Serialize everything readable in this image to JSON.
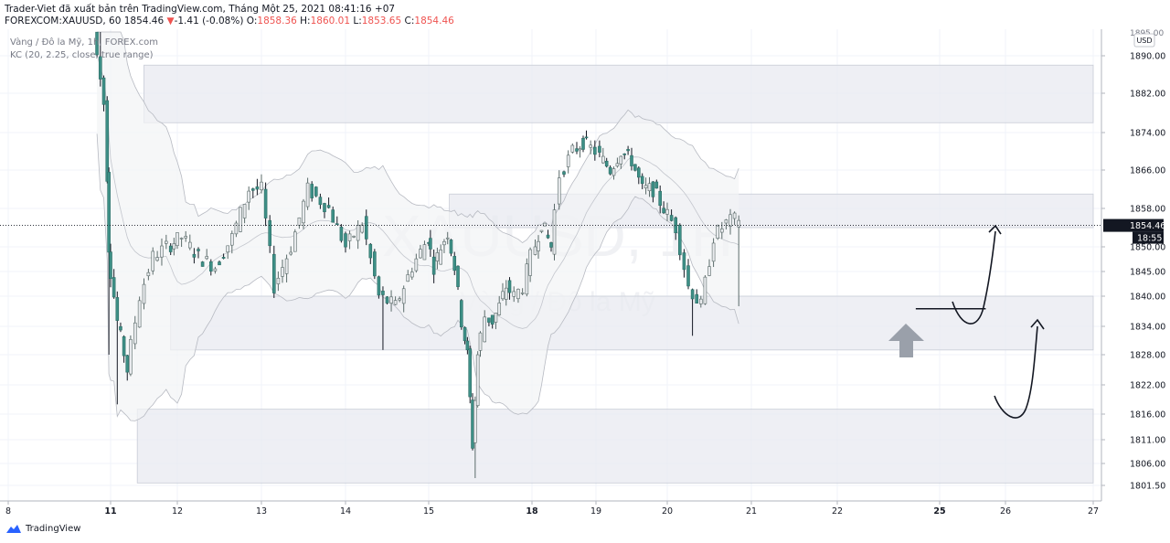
{
  "header": {
    "line1": "Trader-Viet đã xuất bản trên TradingView.com, Tháng Một 25, 2021 08:41:16 +07",
    "symbol": "FOREXCOM:XAUUSD, 60",
    "last": "1854.46",
    "change_arrow": "▼",
    "change": "-1.41 (-0.08%)",
    "o_label": "O:",
    "o_val": "1858.36",
    "h_label": "H:",
    "h_val": "1860.01",
    "l_label": "L:",
    "l_val": "1853.65",
    "c_label": "C:",
    "c_val": "1854.46"
  },
  "legend": {
    "line1": "Vàng / Đô la Mỹ, 1h, FOREX.com",
    "line2": "KC (20, 2.25, close, true range)"
  },
  "watermark": {
    "big": "XAUUSD, 1H",
    "small": "Vàng / Đô la Mỹ"
  },
  "footer": {
    "brand": "TradingView"
  },
  "colors": {
    "up": "#26a69a",
    "down": "#131722",
    "up_body": "#e8eaed",
    "down_body": "#3d8f86",
    "zone": "#e8eaf0",
    "price_tag": "#131722"
  },
  "chart_data": {
    "type": "candlestick",
    "symbol": "XAUUSD",
    "interval": "1h",
    "currency": "USD",
    "y_ticks": [
      1890.0,
      1882.0,
      1874.0,
      1866.0,
      1858.0,
      1850.0,
      1845.0,
      1840.0,
      1834.0,
      1828.0,
      1822.0,
      1816.0,
      1811.0,
      1806.0,
      1801.5
    ],
    "y_top_label": "1895.00",
    "x_ticks": [
      {
        "label": "8",
        "day": 8
      },
      {
        "label": "11",
        "day": 11
      },
      {
        "label": "12",
        "day": 12
      },
      {
        "label": "13",
        "day": 13
      },
      {
        "label": "14",
        "day": 14
      },
      {
        "label": "15",
        "day": 15
      },
      {
        "label": "18",
        "day": 18
      },
      {
        "label": "19",
        "day": 19
      },
      {
        "label": "20",
        "day": 20
      },
      {
        "label": "21",
        "day": 21
      },
      {
        "label": "22",
        "day": 22
      },
      {
        "label": "25",
        "day": 25
      },
      {
        "label": "26",
        "day": 26
      },
      {
        "label": "27",
        "day": 27
      }
    ],
    "last_price": "1854.46",
    "countdown": "18:55",
    "zones": [
      {
        "from_day": 11.5,
        "to_day": 27,
        "low": 1876,
        "high": 1888
      },
      {
        "from_day": 15.6,
        "to_day": 27,
        "low": 1854,
        "high": 1861
      },
      {
        "from_day": 11.9,
        "to_day": 27,
        "low": 1829,
        "high": 1840
      },
      {
        "from_day": 11.4,
        "to_day": 27,
        "low": 1802,
        "high": 1817
      }
    ],
    "support_line": {
      "from_day": 24.3,
      "to_day": 25.7,
      "price": 1837.5
    },
    "path": [
      [
        10.6,
        1895
      ],
      [
        10.9,
        1880
      ],
      [
        11.0,
        1850
      ],
      [
        11.15,
        1835
      ],
      [
        11.3,
        1825
      ],
      [
        11.5,
        1840
      ],
      [
        11.7,
        1848
      ],
      [
        11.9,
        1850
      ],
      [
        12.1,
        1852
      ],
      [
        12.3,
        1848
      ],
      [
        12.5,
        1846
      ],
      [
        12.7,
        1852
      ],
      [
        12.9,
        1862
      ],
      [
        13.05,
        1862
      ],
      [
        13.2,
        1842
      ],
      [
        13.4,
        1850
      ],
      [
        13.6,
        1862
      ],
      [
        13.85,
        1858
      ],
      [
        14.05,
        1850
      ],
      [
        14.25,
        1855
      ],
      [
        14.45,
        1840
      ],
      [
        14.65,
        1838
      ],
      [
        14.85,
        1846
      ],
      [
        15.05,
        1852
      ],
      [
        15.25,
        1846
      ],
      [
        15.45,
        1850
      ],
      [
        15.65,
        1853
      ],
      [
        15.85,
        1846
      ],
      [
        16.05,
        1835
      ],
      [
        16.2,
        1828
      ],
      [
        16.35,
        1810
      ],
      [
        16.5,
        1828
      ],
      [
        16.75,
        1836
      ],
      [
        16.95,
        1835
      ],
      [
        17.15,
        1838
      ],
      [
        17.35,
        1842
      ],
      [
        17.6,
        1840
      ],
      [
        17.85,
        1842
      ],
      [
        18.05,
        1848
      ],
      [
        18.2,
        1855
      ],
      [
        18.35,
        1850
      ],
      [
        18.5,
        1865
      ],
      [
        18.7,
        1870
      ],
      [
        18.85,
        1872
      ],
      [
        19.05,
        1870
      ],
      [
        19.25,
        1866
      ],
      [
        19.4,
        1870
      ],
      [
        19.55,
        1868
      ],
      [
        19.7,
        1862
      ],
      [
        19.85,
        1862
      ],
      [
        20.0,
        1858
      ],
      [
        20.15,
        1854
      ],
      [
        20.3,
        1842
      ],
      [
        20.45,
        1838
      ],
      [
        20.6,
        1852
      ],
      [
        20.75,
        1855
      ],
      [
        20.9,
        1856
      ]
    ]
  }
}
